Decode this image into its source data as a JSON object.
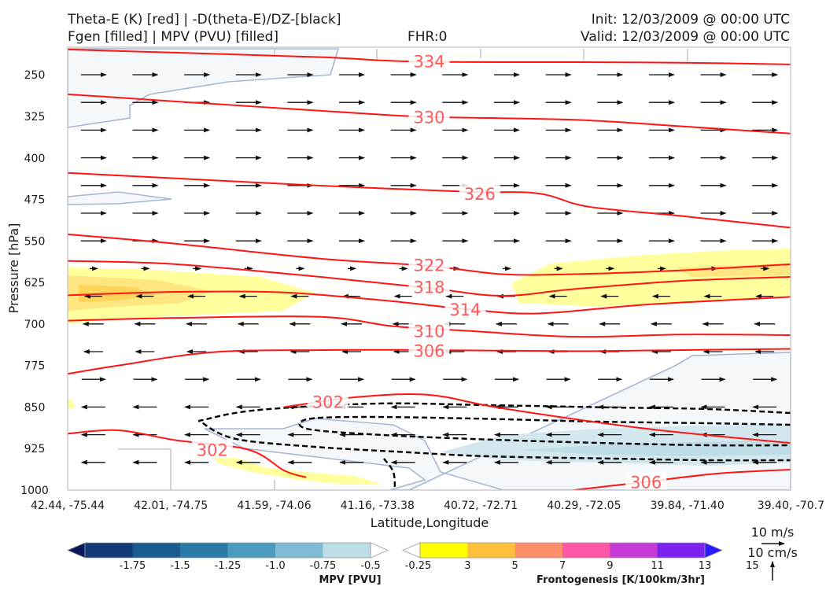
{
  "header": {
    "line1_left": "Theta-E (K) [red] | -D(theta-E)/DZ-[black]",
    "line2_left": "Fgen [filled] | MPV (PVU) [filled]",
    "fhr": "FHR:0",
    "init": "Init: 12/03/2009 @ 00:00 UTC",
    "valid": "Valid: 12/03/2009 @ 00:00 UTC"
  },
  "chart_data": {
    "type": "cross-section",
    "xlabel": "Latitude,Longitude",
    "ylabel": "Pressure [hPa]",
    "x_ticks": [
      "42.44, -75.44",
      "42.01, -74.75",
      "41.59, -74.06",
      "41.16, -73.38",
      "40.72, -72.71",
      "40.29, -72.05",
      "39.84, -71.40",
      "39.40, -70.7"
    ],
    "y_ticks": [
      250,
      325,
      400,
      475,
      550,
      625,
      700,
      775,
      850,
      925,
      1000
    ],
    "ylim": [
      1000,
      200
    ],
    "theta_e_contours": [
      {
        "label": "334",
        "x": [
          0.0,
          0.1,
          0.35,
          0.48,
          0.7,
          0.85,
          1.0
        ],
        "p": [
          204,
          208,
          218,
          226,
          227,
          228,
          231
        ],
        "label_at": [
          0.5,
          225
        ]
      },
      {
        "label": "330",
        "x": [
          0.0,
          0.15,
          0.4,
          0.5,
          0.7,
          0.85,
          1.0
        ],
        "p": [
          285,
          298,
          319,
          326,
          331,
          343,
          356
        ],
        "label_at": [
          0.5,
          326
        ]
      },
      {
        "label": "326",
        "x": [
          0.0,
          0.15,
          0.35,
          0.55,
          0.65,
          0.72,
          0.85,
          1.0
        ],
        "p": [
          427,
          437,
          450,
          461,
          464,
          488,
          505,
          526
        ],
        "label_at": [
          0.57,
          464
        ]
      },
      {
        "label": "322",
        "x": [
          0.0,
          0.15,
          0.35,
          0.5,
          0.6,
          0.7,
          0.85,
          1.0
        ],
        "p": [
          538,
          555,
          582,
          595,
          610,
          610,
          603,
          592
        ],
        "label_at": [
          0.5,
          593
        ]
      },
      {
        "label": "318",
        "x": [
          0.0,
          0.15,
          0.35,
          0.5,
          0.6,
          0.7,
          0.85,
          1.0
        ],
        "p": [
          586,
          592,
          615,
          635,
          649,
          637,
          622,
          615
        ],
        "label_at": [
          0.5,
          633
        ]
      },
      {
        "label": "314",
        "x": [
          0.0,
          0.15,
          0.3,
          0.45,
          0.55,
          0.65,
          0.8,
          1.0
        ],
        "p": [
          648,
          642,
          643,
          659,
          673,
          681,
          665,
          651
        ],
        "label_at": [
          0.55,
          673
        ]
      },
      {
        "label": "310",
        "x": [
          0.0,
          0.15,
          0.35,
          0.45,
          0.55,
          0.7,
          0.85,
          1.0
        ],
        "p": [
          694,
          689,
          687,
          704,
          712,
          723,
          719,
          720
        ],
        "label_at": [
          0.5,
          712
        ]
      },
      {
        "label": "306",
        "x": [
          0.0,
          0.07,
          0.2,
          0.35,
          0.5,
          0.7,
          0.85,
          1.0
        ],
        "p": [
          790,
          775,
          751,
          747,
          747,
          749,
          747,
          745
        ],
        "label_at": [
          0.5,
          748
        ]
      },
      {
        "label": "302",
        "x": [
          0.0,
          0.07,
          0.15,
          0.25,
          0.3,
          0.33
        ],
        "p": [
          898,
          892,
          910,
          927,
          965,
          977
        ],
        "label_at": [
          0.2,
          927
        ]
      },
      {
        "label": "302",
        "x": [
          0.3,
          0.4,
          0.5,
          0.6,
          0.8,
          1.0
        ],
        "p": [
          850,
          832,
          828,
          852,
          889,
          915
        ],
        "label_at": [
          0.36,
          840
        ]
      },
      {
        "label": "306",
        "x": [
          0.7,
          0.8,
          0.9,
          1.0
        ],
        "p": [
          1000,
          985,
          970,
          963
        ],
        "label_at": [
          0.8,
          985
        ]
      }
    ],
    "mpv_colorbar": {
      "title": "MPV [PVU]",
      "labels": [
        "-1.75",
        "-1.5",
        "-1.25",
        "-1.0",
        "-0.75",
        "-0.5",
        "-0.25"
      ],
      "colors": [
        "#0a1a5c",
        "#113a75",
        "#1b5b8f",
        "#2a7aa6",
        "#4b9bbf",
        "#7fbbd4",
        "#bedde6",
        "#ffffff"
      ]
    },
    "fgen_colorbar": {
      "title": "Frontogenesis [K/100km/3hr]",
      "labels": [
        "3",
        "5",
        "7",
        "9",
        "11",
        "13",
        "15"
      ],
      "colors": [
        "#ffffff",
        "#ffff00",
        "#ffc03c",
        "#ff8f6b",
        "#ff55a8",
        "#c63ad8",
        "#7b22ee",
        "#2a1aff"
      ]
    },
    "wind_ref": {
      "u": "10 m/s",
      "w": "10 cm/s"
    }
  }
}
